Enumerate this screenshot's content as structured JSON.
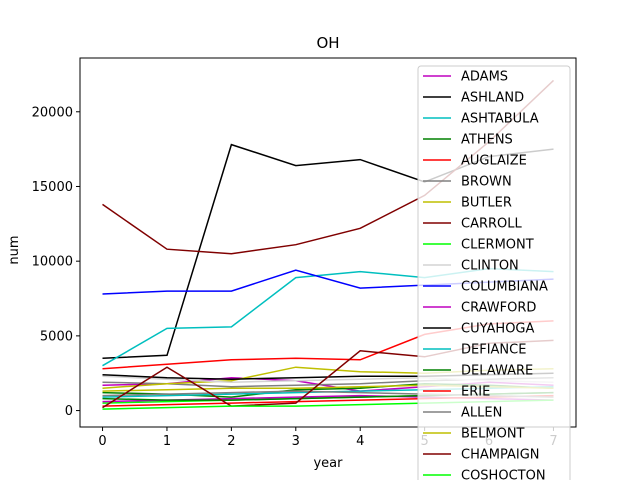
{
  "chart_data": {
    "type": "line",
    "title": "OH",
    "xlabel": "year",
    "ylabel": "num",
    "xlim": [
      -0.35,
      7.35
    ],
    "ylim": [
      -1100,
      23600
    ],
    "xticks": [
      0,
      1,
      2,
      3,
      4,
      5,
      6,
      7
    ],
    "yticks": [
      0,
      5000,
      10000,
      15000,
      20000
    ],
    "x": [
      0,
      1,
      2,
      3,
      4,
      5,
      6,
      7
    ],
    "legend_position": "right",
    "series": [
      {
        "name": "ADAMS",
        "color": "#bf00bf",
        "values": [
          1700,
          1800,
          2200,
          2000,
          1300,
          1600,
          1900,
          1700
        ]
      },
      {
        "name": "ASHLAND",
        "color": "#000000",
        "values": [
          3500,
          3700,
          17800,
          16400,
          16800,
          15300,
          17000,
          17500
        ]
      },
      {
        "name": "ASHTABULA",
        "color": "#00bfbf",
        "values": [
          3000,
          5500,
          5600,
          8900,
          9300,
          8900,
          9500,
          9300
        ]
      },
      {
        "name": "ATHENS",
        "color": "#008000",
        "values": [
          1200,
          1100,
          900,
          1400,
          1500,
          1800,
          1700,
          1500
        ]
      },
      {
        "name": "AUGLAIZE",
        "color": "#ff0000",
        "values": [
          2800,
          3100,
          3400,
          3500,
          3400,
          5100,
          5800,
          6000
        ]
      },
      {
        "name": "BROWN",
        "color": "#808080",
        "values": [
          1900,
          1800,
          1600,
          1700,
          1800,
          2000,
          2100,
          2200
        ]
      },
      {
        "name": "BUTLER",
        "color": "#bfbf00",
        "values": [
          1500,
          1800,
          2000,
          2900,
          2600,
          2500,
          2700,
          2800
        ]
      },
      {
        "name": "CARROLL",
        "color": "#800000",
        "values": [
          13800,
          10800,
          10500,
          11100,
          12200,
          14400,
          18000,
          22100
        ]
      },
      {
        "name": "CLERMONT",
        "color": "#00ff00",
        "values": [
          500,
          600,
          700,
          800,
          900,
          1000,
          1100,
          1200
        ]
      },
      {
        "name": "CLINTON",
        "color": "#d3d3d3",
        "values": [
          2300,
          2100,
          1900,
          2000,
          2100,
          2200,
          2000,
          1900
        ]
      },
      {
        "name": "COLUMBIANA",
        "color": "#0000ff",
        "values": [
          7800,
          8000,
          8000,
          9400,
          8200,
          8400,
          8600,
          8800
        ]
      },
      {
        "name": "CRAWFORD",
        "color": "#bf00bf",
        "values": [
          600,
          700,
          800,
          900,
          1000,
          900,
          800,
          700
        ]
      },
      {
        "name": "CUYAHOGA",
        "color": "#000000",
        "values": [
          2400,
          2200,
          2100,
          2200,
          2300,
          2300,
          2400,
          2500
        ]
      },
      {
        "name": "DEFIANCE",
        "color": "#00bfbf",
        "values": [
          900,
          1000,
          1100,
          1200,
          1300,
          1400,
          1500,
          1600
        ]
      },
      {
        "name": "DELAWARE",
        "color": "#008000",
        "values": [
          800,
          700,
          700,
          800,
          900,
          1000,
          1100,
          1200
        ]
      },
      {
        "name": "ERIE",
        "color": "#ff0000",
        "values": [
          300,
          400,
          500,
          600,
          700,
          800,
          900,
          1000
        ]
      },
      {
        "name": "ALLEN",
        "color": "#808080",
        "values": [
          1000,
          1100,
          1200,
          1300,
          1200,
          1100,
          1000,
          900
        ]
      },
      {
        "name": "BELMONT",
        "color": "#bfbf00",
        "values": [
          1300,
          1400,
          1500,
          1500,
          1600,
          1700,
          1600,
          1500
        ]
      },
      {
        "name": "CHAMPAIGN",
        "color": "#800000",
        "values": [
          200,
          2900,
          300,
          500,
          4000,
          3600,
          4500,
          4700
        ]
      },
      {
        "name": "COSHOCTON",
        "color": "#00ff00",
        "values": [
          100,
          200,
          300,
          300,
          400,
          500,
          600,
          700
        ]
      }
    ]
  }
}
